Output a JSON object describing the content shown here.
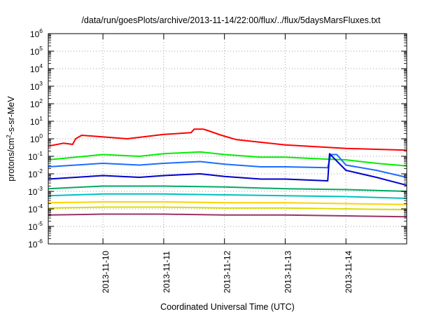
{
  "chart_data": {
    "type": "line",
    "title": "/data/run/goesPlots/archive/2013-11-14/22:00/flux/../flux/5daysMarsFluxes.txt",
    "xlabel": "Coordinated Universal Time (UTC)",
    "ylabel": {
      "base": "protons/cm",
      "sup": "2",
      "rest": "-s-sr-MeV"
    },
    "yscale": "log",
    "ylim_exp": [
      -6,
      6
    ],
    "ytick_exps": [
      -6,
      -5,
      -4,
      -3,
      -2,
      -1,
      0,
      1,
      2,
      3,
      4,
      5,
      6
    ],
    "x_domain_days": [
      9.1,
      15.0
    ],
    "xticks": [
      {
        "label": "2013-11-10",
        "day": 10.0
      },
      {
        "label": "2013-11-11",
        "day": 11.0
      },
      {
        "label": "2013-11-12",
        "day": 12.0
      },
      {
        "label": "2013-11-13",
        "day": 13.0
      },
      {
        "label": "2013-11-14",
        "day": 14.0
      }
    ],
    "grid": true,
    "series": [
      {
        "color": "#ff0000",
        "points": [
          [
            9.1,
            -0.42
          ],
          [
            9.35,
            -0.25
          ],
          [
            9.5,
            -0.32
          ],
          [
            9.55,
            0.0
          ],
          [
            9.65,
            0.2
          ],
          [
            10.4,
            0.0
          ],
          [
            11.0,
            0.25
          ],
          [
            11.45,
            0.35
          ],
          [
            11.5,
            0.55
          ],
          [
            11.65,
            0.55
          ],
          [
            11.7,
            0.5
          ],
          [
            11.95,
            0.2
          ],
          [
            12.2,
            -0.05
          ],
          [
            12.6,
            -0.2
          ],
          [
            13.0,
            -0.35
          ],
          [
            13.5,
            -0.45
          ],
          [
            14.0,
            -0.55
          ],
          [
            14.5,
            -0.6
          ],
          [
            15.0,
            -0.65
          ]
        ]
      },
      {
        "color": "#00ee00",
        "points": [
          [
            9.1,
            -1.2
          ],
          [
            10.0,
            -0.9
          ],
          [
            10.6,
            -1.0
          ],
          [
            11.0,
            -0.85
          ],
          [
            11.6,
            -0.75
          ],
          [
            12.0,
            -0.9
          ],
          [
            12.6,
            -1.05
          ],
          [
            13.0,
            -1.05
          ],
          [
            13.6,
            -1.15
          ],
          [
            14.0,
            -1.2
          ],
          [
            14.5,
            -1.4
          ],
          [
            15.0,
            -1.55
          ]
        ]
      },
      {
        "color": "#1a6eff",
        "points": [
          [
            9.1,
            -1.6
          ],
          [
            10.0,
            -1.4
          ],
          [
            10.6,
            -1.5
          ],
          [
            11.0,
            -1.4
          ],
          [
            11.6,
            -1.3
          ],
          [
            12.0,
            -1.45
          ],
          [
            12.6,
            -1.6
          ],
          [
            13.0,
            -1.6
          ],
          [
            13.7,
            -1.65
          ],
          [
            13.75,
            -0.9
          ],
          [
            13.85,
            -0.9
          ],
          [
            14.0,
            -1.5
          ],
          [
            14.5,
            -1.8
          ],
          [
            15.0,
            -2.2
          ]
        ]
      },
      {
        "color": "#0000cc",
        "points": [
          [
            9.1,
            -2.3
          ],
          [
            10.0,
            -2.1
          ],
          [
            10.6,
            -2.2
          ],
          [
            11.0,
            -2.1
          ],
          [
            11.6,
            -2.0
          ],
          [
            12.0,
            -2.15
          ],
          [
            12.6,
            -2.3
          ],
          [
            13.0,
            -2.3
          ],
          [
            13.7,
            -2.4
          ],
          [
            13.73,
            -0.85
          ],
          [
            14.0,
            -1.8
          ],
          [
            14.5,
            -2.2
          ],
          [
            15.0,
            -2.65
          ]
        ]
      },
      {
        "color": "#00aa66",
        "points": [
          [
            9.1,
            -2.85
          ],
          [
            10.0,
            -2.7
          ],
          [
            11.0,
            -2.7
          ],
          [
            12.0,
            -2.75
          ],
          [
            13.0,
            -2.85
          ],
          [
            14.0,
            -2.9
          ],
          [
            15.0,
            -3.0
          ]
        ]
      },
      {
        "color": "#00c0c0",
        "points": [
          [
            9.1,
            -3.25
          ],
          [
            10.0,
            -3.15
          ],
          [
            11.0,
            -3.15
          ],
          [
            12.0,
            -3.2
          ],
          [
            13.0,
            -3.25
          ],
          [
            14.0,
            -3.3
          ],
          [
            15.0,
            -3.4
          ]
        ]
      },
      {
        "color": "#ffd200",
        "points": [
          [
            9.1,
            -3.65
          ],
          [
            10.0,
            -3.6
          ],
          [
            11.0,
            -3.6
          ],
          [
            12.0,
            -3.65
          ],
          [
            13.0,
            -3.65
          ],
          [
            14.0,
            -3.7
          ],
          [
            15.0,
            -3.75
          ]
        ]
      },
      {
        "color": "#dddd00",
        "points": [
          [
            9.1,
            -3.95
          ],
          [
            10.0,
            -3.9
          ],
          [
            11.0,
            -3.9
          ],
          [
            12.0,
            -3.95
          ],
          [
            13.0,
            -3.95
          ],
          [
            14.0,
            -4.0
          ],
          [
            15.0,
            -4.05
          ]
        ]
      },
      {
        "color": "#993366",
        "points": [
          [
            9.1,
            -4.35
          ],
          [
            10.0,
            -4.3
          ],
          [
            11.0,
            -4.3
          ],
          [
            12.0,
            -4.35
          ],
          [
            13.0,
            -4.35
          ],
          [
            14.0,
            -4.4
          ],
          [
            15.0,
            -4.45
          ]
        ]
      }
    ]
  }
}
